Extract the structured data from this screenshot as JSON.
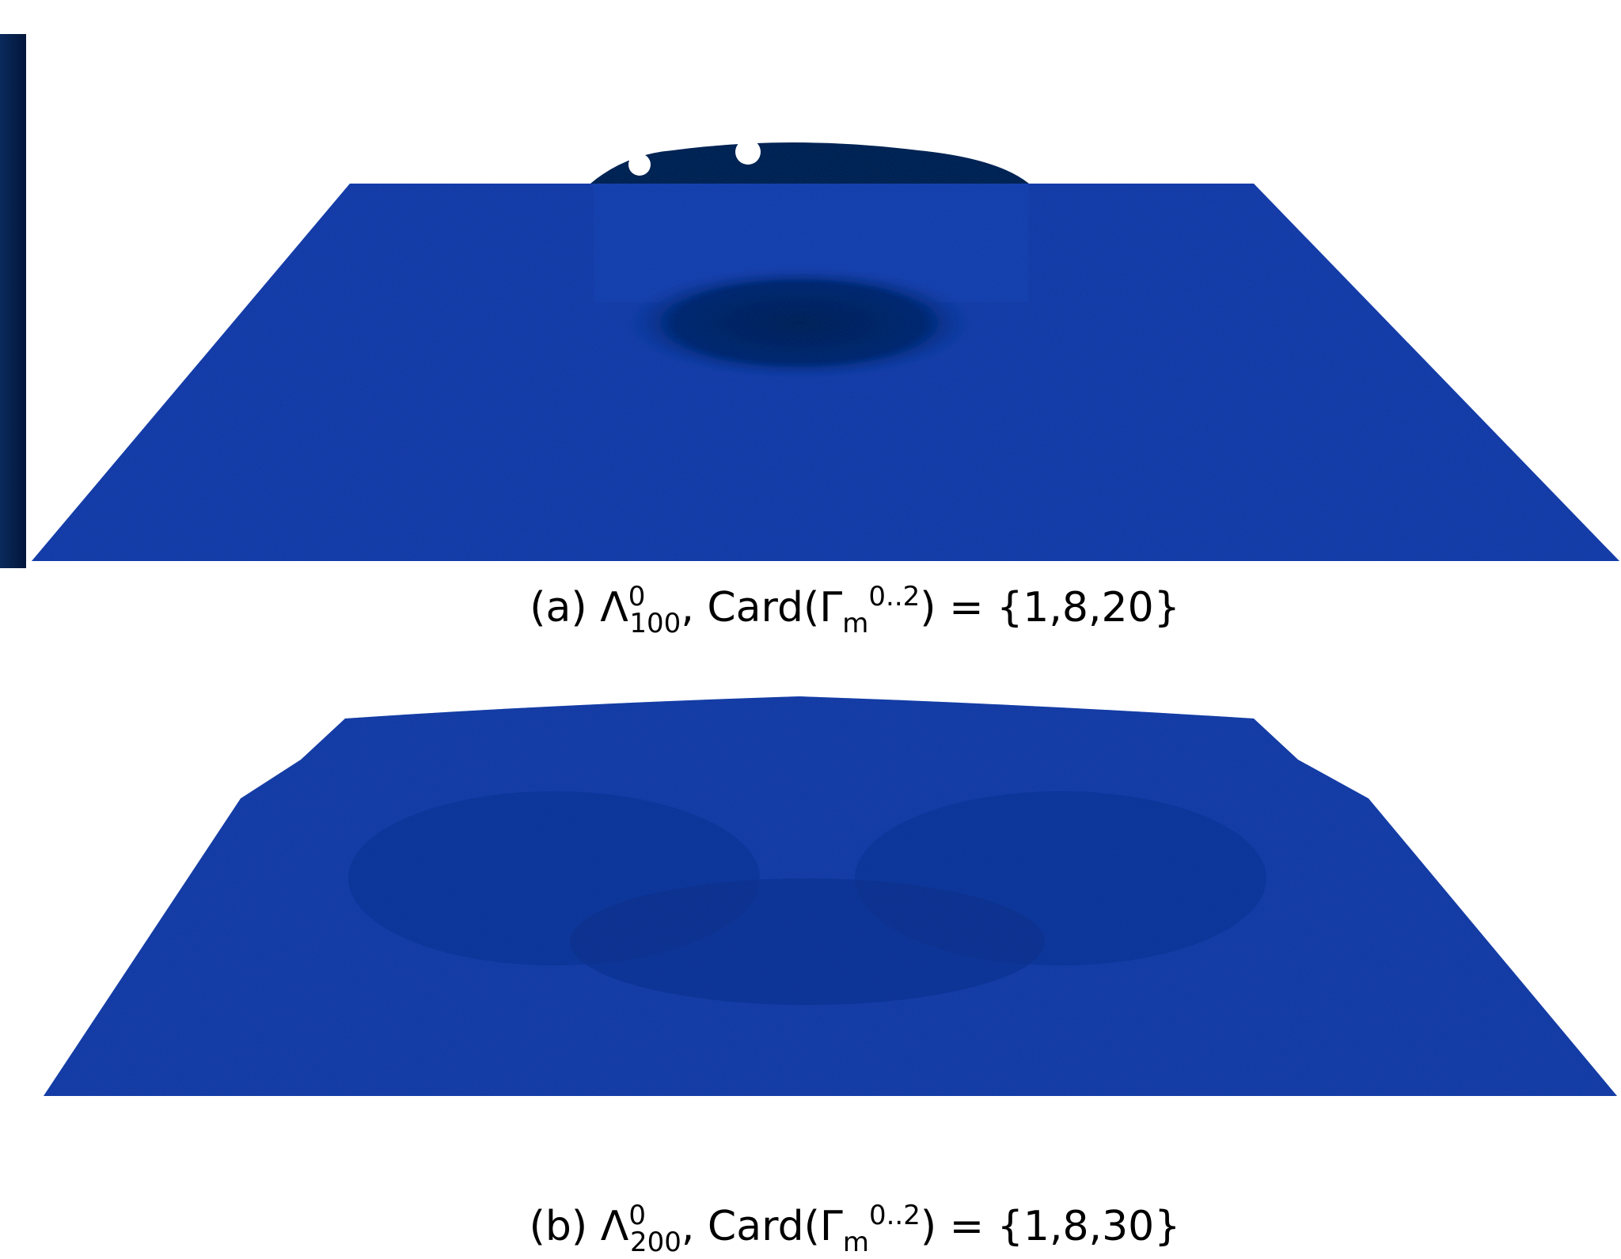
{
  "panels": [
    {
      "caption": {
        "prefix": "(a) Λ",
        "sup1": "0",
        "sub1": "100",
        "mid": ", Card(Γ",
        "sub2": "m",
        "sup2": "0..2",
        "suffix": ") = {1,8,20}"
      }
    },
    {
      "caption": {
        "prefix": "(b) Λ",
        "sup1": "0",
        "sub1": "200",
        "mid": ", Card(Γ",
        "sub2": "m",
        "sup2": "0..2",
        "suffix": ") = {1,8,30}"
      }
    }
  ]
}
